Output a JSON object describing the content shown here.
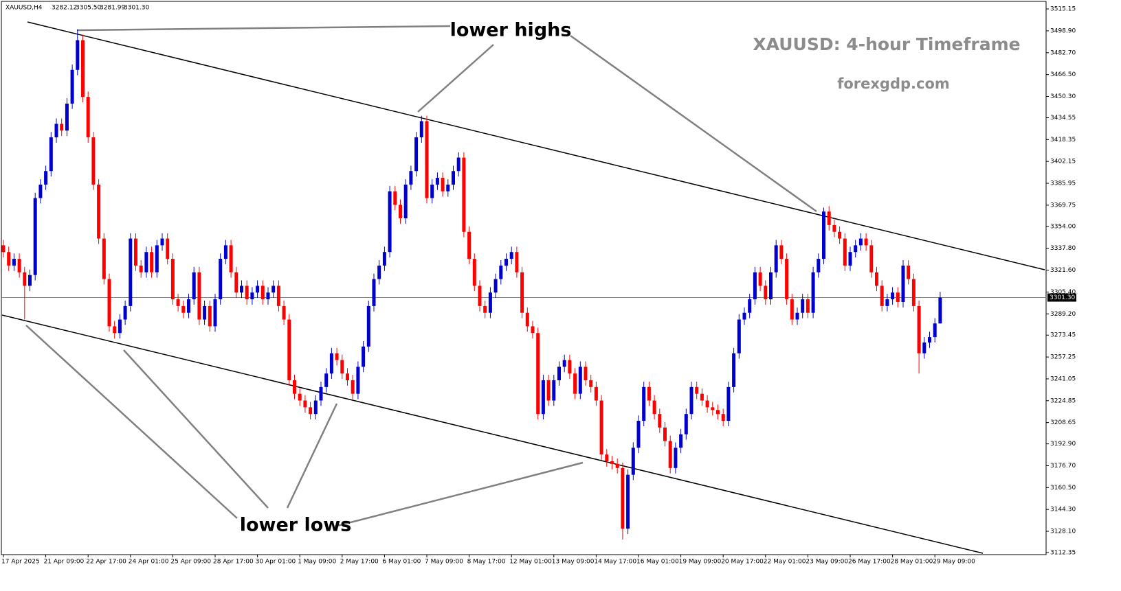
{
  "chart_data": {
    "type": "candlestick",
    "title": "XAUUSD: 4-hour Timeframe",
    "subtitle": "forexgdp.com",
    "symbol": "XAUUSD,H4",
    "header_values": [
      "3282.12",
      "3305.50",
      "3281.99",
      "3301.30"
    ],
    "annotations": [
      "lower highs",
      "lower lows"
    ],
    "up_color": "#0000cc",
    "down_color": "#ff0000",
    "grid": false,
    "ylim": [
      3112.35,
      3515.15
    ],
    "yticks": [
      3515.15,
      {
        "value": 3498.9,
        "label": "3498.90"
      },
      {
        "value": 3482.7,
        "label": "3482.70"
      },
      {
        "value": 3466.5,
        "label": "3466.50"
      },
      {
        "value": 3450.3,
        "label": "3450.30"
      },
      3434.55,
      3418.35,
      3402.15,
      3385.95,
      3369.75,
      {
        "value": 3354,
        "label": "3354.00"
      },
      {
        "value": 3337.8,
        "label": "3337.80"
      },
      {
        "value": 3321.6,
        "label": "3321.60"
      },
      {
        "value": 3305.4,
        "label": "3305.40"
      },
      {
        "value": 3289.2,
        "label": "3289.20"
      },
      3273.45,
      3257.25,
      3241.05,
      3224.85,
      3208.65,
      {
        "value": 3192.9,
        "label": "3192.90"
      },
      {
        "value": 3176.7,
        "label": "3176.70"
      },
      {
        "value": 3160.5,
        "label": "3160.50"
      },
      {
        "value": 3144.3,
        "label": "3144.30"
      },
      {
        "value": 3128.1,
        "label": "3128.10"
      },
      3112.35
    ],
    "current_price": {
      "value": 3301.3,
      "label": "3301.30"
    },
    "categories": [
      "17 Apr 2025",
      null,
      null,
      null,
      null,
      null,
      null,
      null,
      "21 Apr 09:00",
      null,
      null,
      null,
      null,
      null,
      null,
      null,
      "22 Apr 17:00",
      null,
      null,
      null,
      null,
      null,
      null,
      null,
      "24 Apr 01:00",
      null,
      null,
      null,
      null,
      null,
      null,
      null,
      "25 Apr 09:00",
      null,
      null,
      null,
      null,
      null,
      null,
      null,
      "28 Apr 17:00",
      null,
      null,
      null,
      null,
      null,
      null,
      null,
      "30 Apr 01:00",
      null,
      null,
      null,
      null,
      null,
      null,
      null,
      "1 May 09:00",
      null,
      null,
      null,
      null,
      null,
      null,
      null,
      "2 May 17:00",
      null,
      null,
      null,
      null,
      null,
      null,
      null,
      "6 May 01:00",
      null,
      null,
      null,
      null,
      null,
      null,
      null,
      "7 May 09:00",
      null,
      null,
      null,
      null,
      null,
      null,
      null,
      "8 May 17:00",
      null,
      null,
      null,
      null,
      null,
      null,
      null,
      "12 May 01:00",
      null,
      null,
      null,
      null,
      null,
      null,
      null,
      "13 May 09:00",
      null,
      null,
      null,
      null,
      null,
      null,
      null,
      "14 May 17:00",
      null,
      null,
      null,
      null,
      null,
      null,
      null,
      "16 May 01:00",
      null,
      null,
      null,
      null,
      null,
      null,
      null,
      "19 May 09:00",
      null,
      null,
      null,
      null,
      null,
      null,
      null,
      "20 May 17:00",
      null,
      null,
      null,
      null,
      null,
      null,
      null,
      "22 May 01:00",
      null,
      null,
      null,
      null,
      null,
      null,
      null,
      "23 May 09:00",
      null,
      null,
      null,
      null,
      null,
      null,
      null,
      "26 May 17:00",
      null,
      null,
      null,
      null,
      null,
      null,
      null,
      "28 May 01:00",
      null,
      null,
      null,
      null,
      null,
      null,
      null,
      "29 May 09:00",
      null
    ],
    "open": [
      3340,
      3335,
      3325,
      3330,
      3320,
      3310,
      3318,
      3375,
      3385,
      3395,
      3420,
      3430,
      3425,
      3445,
      3470,
      3492,
      3450,
      3420,
      3385,
      3345,
      3315,
      3280,
      3275,
      3285,
      3295,
      3345,
      3325,
      3320,
      3335,
      3320,
      3340,
      3345,
      3330,
      3300,
      3295,
      3290,
      3300,
      3320,
      3285,
      3295,
      3280,
      3300,
      3330,
      3340,
      3320,
      3305,
      3310,
      3300,
      3305,
      3310,
      3300,
      3305,
      3310,
      3295,
      3285,
      3240,
      3230,
      3225,
      3220,
      3215,
      3225,
      3235,
      3245,
      3260,
      3255,
      3245,
      3240,
      3230,
      3250,
      3265,
      3295,
      3315,
      3325,
      3335,
      3380,
      3370,
      3360,
      3385,
      3395,
      3420,
      3432,
      3375,
      3385,
      3390,
      3380,
      3385,
      3395,
      3405,
      3350,
      3330,
      3310,
      3295,
      3290,
      3305,
      3315,
      3325,
      3330,
      3335,
      3320,
      3290,
      3280,
      3275,
      3215,
      3240,
      3225,
      3240,
      3250,
      3255,
      3245,
      3230,
      3250,
      3240,
      3235,
      3225,
      3185,
      3180,
      3178,
      3175,
      3130,
      3170,
      3190,
      3210,
      3235,
      3225,
      3215,
      3205,
      3195,
      3175,
      3190,
      3200,
      3215,
      3235,
      3230,
      3225,
      3220,
      3218,
      3215,
      3210,
      3235,
      3260,
      3285,
      3290,
      3300,
      3320,
      3310,
      3300,
      3320,
      3340,
      3330,
      3300,
      3285,
      3290,
      3300,
      3290,
      3320,
      3330,
      3365,
      3355,
      3350,
      3345,
      3325,
      3335,
      3340,
      3345,
      3340,
      3320,
      3310,
      3295,
      3300,
      3305,
      3298,
      3325,
      3315,
      3295,
      3260,
      3268,
      3272,
      3282.12
    ],
    "high": [
      3344,
      3339,
      3334,
      3334,
      3324,
      3322,
      3379,
      3389,
      3399,
      3424,
      3434,
      3434,
      3449,
      3474,
      3500,
      3496,
      3454,
      3424,
      3389,
      3349,
      3319,
      3284,
      3289,
      3299,
      3349,
      3349,
      3329,
      3339,
      3339,
      3344,
      3349,
      3349,
      3334,
      3304,
      3299,
      3304,
      3324,
      3324,
      3299,
      3299,
      3304,
      3334,
      3344,
      3344,
      3324,
      3314,
      3314,
      3309,
      3314,
      3314,
      3309,
      3314,
      3314,
      3299,
      3289,
      3244,
      3234,
      3229,
      3224,
      3229,
      3239,
      3249,
      3264,
      3264,
      3259,
      3249,
      3244,
      3254,
      3269,
      3299,
      3319,
      3329,
      3339,
      3384,
      3384,
      3374,
      3389,
      3399,
      3424,
      3436,
      3436,
      3389,
      3394,
      3394,
      3389,
      3399,
      3409,
      3409,
      3354,
      3334,
      3314,
      3299,
      3309,
      3319,
      3329,
      3334,
      3339,
      3339,
      3324,
      3294,
      3284,
      3279,
      3244,
      3244,
      3244,
      3254,
      3259,
      3259,
      3249,
      3254,
      3254,
      3244,
      3239,
      3229,
      3189,
      3184,
      3182,
      3179,
      3174,
      3194,
      3214,
      3239,
      3239,
      3229,
      3219,
      3209,
      3199,
      3194,
      3204,
      3219,
      3239,
      3239,
      3234,
      3229,
      3224,
      3222,
      3219,
      3239,
      3264,
      3289,
      3294,
      3304,
      3324,
      3324,
      3314,
      3324,
      3344,
      3344,
      3334,
      3304,
      3294,
      3304,
      3304,
      3324,
      3334,
      3368,
      3369,
      3359,
      3354,
      3349,
      3339,
      3344,
      3349,
      3349,
      3344,
      3324,
      3314,
      3304,
      3309,
      3309,
      3329,
      3329,
      3319,
      3299,
      3272,
      3276,
      3286,
      3305.5
    ],
    "low": [
      3331,
      3321,
      3321,
      3316,
      3285,
      3306,
      3314,
      3371,
      3381,
      3391,
      3416,
      3421,
      3421,
      3441,
      3466,
      3446,
      3416,
      3381,
      3341,
      3311,
      3276,
      3271,
      3271,
      3281,
      3291,
      3321,
      3316,
      3316,
      3316,
      3316,
      3336,
      3326,
      3296,
      3291,
      3286,
      3286,
      3296,
      3281,
      3281,
      3276,
      3276,
      3296,
      3326,
      3316,
      3301,
      3301,
      3296,
      3296,
      3301,
      3296,
      3296,
      3301,
      3291,
      3281,
      3236,
      3226,
      3221,
      3216,
      3211,
      3211,
      3221,
      3231,
      3241,
      3251,
      3241,
      3236,
      3226,
      3226,
      3246,
      3261,
      3291,
      3311,
      3321,
      3331,
      3366,
      3356,
      3356,
      3381,
      3391,
      3416,
      3371,
      3371,
      3381,
      3376,
      3376,
      3381,
      3391,
      3346,
      3326,
      3306,
      3291,
      3286,
      3286,
      3301,
      3311,
      3321,
      3326,
      3316,
      3286,
      3276,
      3271,
      3211,
      3211,
      3221,
      3221,
      3236,
      3246,
      3241,
      3226,
      3226,
      3236,
      3231,
      3221,
      3181,
      3176,
      3174,
      3171,
      3122,
      3126,
      3166,
      3186,
      3206,
      3221,
      3211,
      3201,
      3191,
      3171,
      3171,
      3186,
      3196,
      3211,
      3226,
      3221,
      3216,
      3214,
      3211,
      3206,
      3206,
      3231,
      3256,
      3281,
      3286,
      3296,
      3306,
      3296,
      3296,
      3316,
      3326,
      3296,
      3281,
      3281,
      3286,
      3286,
      3286,
      3316,
      3326,
      3351,
      3346,
      3341,
      3321,
      3321,
      3331,
      3336,
      3336,
      3316,
      3306,
      3291,
      3291,
      3296,
      3294,
      3294,
      3311,
      3291,
      3245,
      3256,
      3264,
      3268,
      3281.99
    ],
    "close": [
      3335,
      3325,
      3330,
      3320,
      3310,
      3318,
      3375,
      3385,
      3395,
      3420,
      3430,
      3425,
      3445,
      3470,
      3492,
      3450,
      3420,
      3385,
      3345,
      3315,
      3280,
      3275,
      3285,
      3295,
      3345,
      3325,
      3320,
      3335,
      3320,
      3340,
      3345,
      3330,
      3300,
      3295,
      3290,
      3300,
      3320,
      3285,
      3295,
      3280,
      3300,
      3330,
      3340,
      3320,
      3305,
      3310,
      3300,
      3305,
      3310,
      3300,
      3305,
      3310,
      3295,
      3285,
      3240,
      3230,
      3225,
      3220,
      3215,
      3225,
      3235,
      3245,
      3260,
      3255,
      3245,
      3240,
      3230,
      3250,
      3265,
      3295,
      3315,
      3325,
      3335,
      3380,
      3370,
      3360,
      3385,
      3395,
      3420,
      3432,
      3375,
      3385,
      3390,
      3380,
      3385,
      3395,
      3405,
      3350,
      3330,
      3310,
      3295,
      3290,
      3305,
      3315,
      3325,
      3330,
      3335,
      3320,
      3290,
      3280,
      3275,
      3215,
      3240,
      3225,
      3240,
      3250,
      3255,
      3245,
      3230,
      3250,
      3240,
      3235,
      3225,
      3185,
      3180,
      3178,
      3175,
      3130,
      3170,
      3190,
      3210,
      3235,
      3225,
      3215,
      3205,
      3195,
      3175,
      3190,
      3200,
      3215,
      3235,
      3230,
      3225,
      3220,
      3218,
      3215,
      3210,
      3235,
      3260,
      3285,
      3290,
      3300,
      3320,
      3310,
      3300,
      3320,
      3340,
      3330,
      3300,
      3285,
      3290,
      3300,
      3290,
      3320,
      3330,
      3365,
      3355,
      3350,
      3345,
      3325,
      3335,
      3340,
      3345,
      3340,
      3320,
      3310,
      3295,
      3300,
      3305,
      3298,
      3325,
      3315,
      3295,
      3260,
      3268,
      3272,
      3282.12,
      3301.3
    ]
  }
}
